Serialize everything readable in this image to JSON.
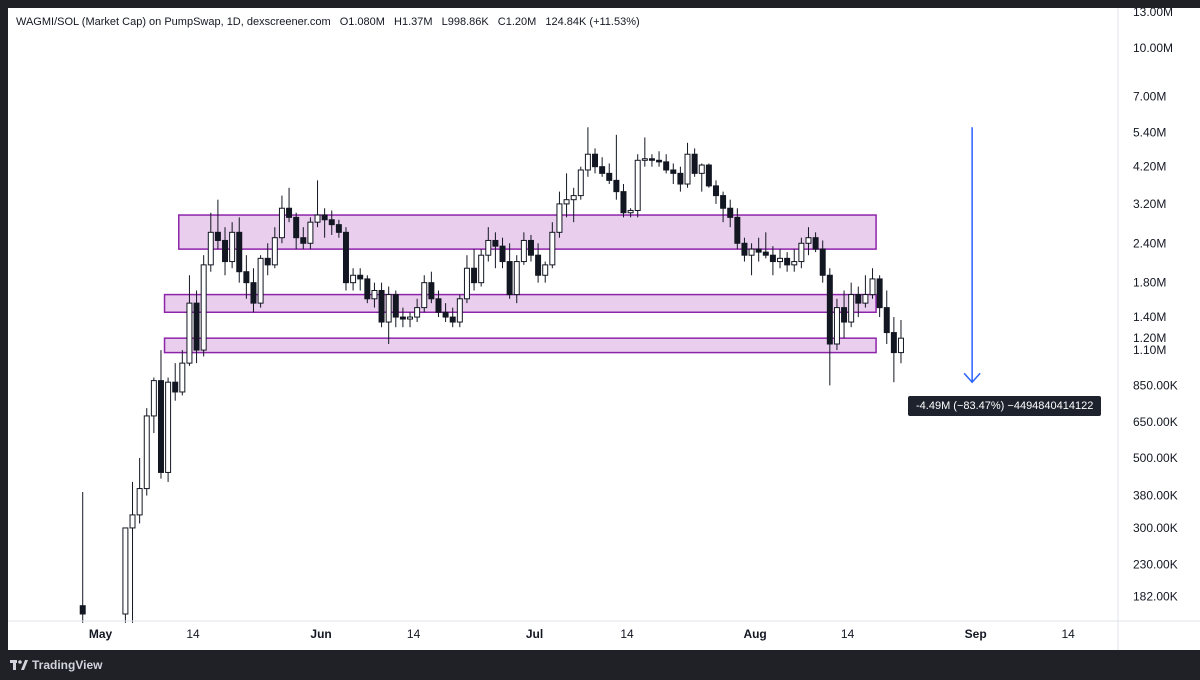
{
  "legend": {
    "symbol": "WAGMI/SOL (Market Cap) on PumpSwap, 1D, dexscreener.com",
    "open": "O1.080M",
    "high": "H1.37M",
    "low": "L998.86K",
    "close": "C1.20M",
    "change": "124.84K (+11.53%)"
  },
  "measure": {
    "label": "-4.49M (−83.47%) −4494840414122"
  },
  "footer": {
    "brand": "TradingView"
  },
  "chart_data": {
    "type": "candlestick",
    "scale": "log",
    "ylim": [
      160000,
      13000000
    ],
    "y_ticks": [
      {
        "value": 13000000,
        "label": "13.00M"
      },
      {
        "value": 10000000,
        "label": "10.00M"
      },
      {
        "value": 7000000,
        "label": "7.00M"
      },
      {
        "value": 5400000,
        "label": "5.40M"
      },
      {
        "value": 4200000,
        "label": "4.20M"
      },
      {
        "value": 3200000,
        "label": "3.20M"
      },
      {
        "value": 2400000,
        "label": "2.40M"
      },
      {
        "value": 1800000,
        "label": "1.80M"
      },
      {
        "value": 1400000,
        "label": "1.40M"
      },
      {
        "value": 1200000,
        "label": "1.20M"
      },
      {
        "value": 1100000,
        "label": "1.10M"
      },
      {
        "value": 850000,
        "label": "850.00K"
      },
      {
        "value": 650000,
        "label": "650.00K"
      },
      {
        "value": 500000,
        "label": "500.00K"
      },
      {
        "value": 380000,
        "label": "380.00K"
      },
      {
        "value": 300000,
        "label": "300.00K"
      },
      {
        "value": 230000,
        "label": "230.00K"
      },
      {
        "value": 182000,
        "label": "182.00K"
      }
    ],
    "x_ticks": [
      {
        "date": "2025-05-01",
        "label": "May",
        "bold": true
      },
      {
        "date": "2025-05-14",
        "label": "14",
        "bold": false
      },
      {
        "date": "2025-06-01",
        "label": "Jun",
        "bold": true
      },
      {
        "date": "2025-06-14",
        "label": "14",
        "bold": false
      },
      {
        "date": "2025-07-01",
        "label": "Jul",
        "bold": true
      },
      {
        "date": "2025-07-14",
        "label": "14",
        "bold": false
      },
      {
        "date": "2025-08-01",
        "label": "Aug",
        "bold": true
      },
      {
        "date": "2025-08-14",
        "label": "14",
        "bold": false
      },
      {
        "date": "2025-09-01",
        "label": "Sep",
        "bold": true
      },
      {
        "date": "2025-09-14",
        "label": "14",
        "bold": false
      }
    ],
    "xlim": [
      "2025-04-18",
      "2025-09-21"
    ],
    "zones": [
      {
        "from": "2025-05-12",
        "to": "2025-08-18",
        "low": 2300000,
        "high": 2950000,
        "color": "#e1bee7"
      },
      {
        "from": "2025-05-10",
        "to": "2025-08-18",
        "low": 1450000,
        "high": 1650000,
        "color": "#e1bee7"
      },
      {
        "from": "2025-05-10",
        "to": "2025-08-18",
        "low": 1080000,
        "high": 1200000,
        "color": "#e1bee7"
      }
    ],
    "zone_border_color": "#8e24aa",
    "arrow": {
      "date": "2025-08-31",
      "from": 5600000,
      "to": 870000,
      "color": "#2962ff"
    },
    "candles": [
      {
        "d": "2025-04-28",
        "o": 170000,
        "h": 390000,
        "l": 150000,
        "c": 160000
      },
      {
        "d": "2025-05-04",
        "o": 160000,
        "h": 300000,
        "l": 150000,
        "c": 300000
      },
      {
        "d": "2025-05-05",
        "o": 300000,
        "h": 420000,
        "l": 150000,
        "c": 330000
      },
      {
        "d": "2025-05-06",
        "o": 330000,
        "h": 500000,
        "l": 310000,
        "c": 400000
      },
      {
        "d": "2025-05-07",
        "o": 400000,
        "h": 720000,
        "l": 380000,
        "c": 680000
      },
      {
        "d": "2025-05-08",
        "o": 680000,
        "h": 900000,
        "l": 600000,
        "c": 880000
      },
      {
        "d": "2025-05-09",
        "o": 880000,
        "h": 1100000,
        "l": 430000,
        "c": 450000
      },
      {
        "d": "2025-05-10",
        "o": 450000,
        "h": 900000,
        "l": 420000,
        "c": 870000
      },
      {
        "d": "2025-05-11",
        "o": 870000,
        "h": 1000000,
        "l": 760000,
        "c": 810000
      },
      {
        "d": "2025-05-12",
        "o": 810000,
        "h": 1100000,
        "l": 790000,
        "c": 1000000
      },
      {
        "d": "2025-05-13",
        "o": 1000000,
        "h": 1900000,
        "l": 980000,
        "c": 1550000
      },
      {
        "d": "2025-05-14",
        "o": 1550000,
        "h": 1700000,
        "l": 1000000,
        "c": 1100000
      },
      {
        "d": "2025-05-15",
        "o": 1100000,
        "h": 2200000,
        "l": 1050000,
        "c": 2050000
      },
      {
        "d": "2025-05-16",
        "o": 2050000,
        "h": 3000000,
        "l": 1950000,
        "c": 2600000
      },
      {
        "d": "2025-05-17",
        "o": 2600000,
        "h": 3300000,
        "l": 2300000,
        "c": 2450000
      },
      {
        "d": "2025-05-18",
        "o": 2450000,
        "h": 2700000,
        "l": 1900000,
        "c": 2100000
      },
      {
        "d": "2025-05-19",
        "o": 2100000,
        "h": 2800000,
        "l": 2000000,
        "c": 2600000
      },
      {
        "d": "2025-05-20",
        "o": 2600000,
        "h": 2900000,
        "l": 1800000,
        "c": 1950000
      },
      {
        "d": "2025-05-21",
        "o": 1950000,
        "h": 2200000,
        "l": 1600000,
        "c": 1800000
      },
      {
        "d": "2025-05-22",
        "o": 1800000,
        "h": 2000000,
        "l": 1450000,
        "c": 1550000
      },
      {
        "d": "2025-05-23",
        "o": 1550000,
        "h": 2200000,
        "l": 1500000,
        "c": 2150000
      },
      {
        "d": "2025-05-24",
        "o": 2150000,
        "h": 2400000,
        "l": 1900000,
        "c": 2050000
      },
      {
        "d": "2025-05-25",
        "o": 2050000,
        "h": 2700000,
        "l": 2000000,
        "c": 2500000
      },
      {
        "d": "2025-05-26",
        "o": 2500000,
        "h": 3400000,
        "l": 2400000,
        "c": 3100000
      },
      {
        "d": "2025-05-27",
        "o": 3100000,
        "h": 3600000,
        "l": 2800000,
        "c": 2900000
      },
      {
        "d": "2025-05-28",
        "o": 2900000,
        "h": 3000000,
        "l": 2300000,
        "c": 2500000
      },
      {
        "d": "2025-05-29",
        "o": 2500000,
        "h": 2700000,
        "l": 2300000,
        "c": 2400000
      },
      {
        "d": "2025-05-30",
        "o": 2400000,
        "h": 2900000,
        "l": 2300000,
        "c": 2800000
      },
      {
        "d": "2025-05-31",
        "o": 2800000,
        "h": 3800000,
        "l": 2700000,
        "c": 2950000
      },
      {
        "d": "2025-06-01",
        "o": 2950000,
        "h": 3100000,
        "l": 2500000,
        "c": 2850000
      },
      {
        "d": "2025-06-02",
        "o": 2850000,
        "h": 3050000,
        "l": 2550000,
        "c": 2750000
      },
      {
        "d": "2025-06-03",
        "o": 2750000,
        "h": 2850000,
        "l": 2500000,
        "c": 2600000
      },
      {
        "d": "2025-06-04",
        "o": 2600000,
        "h": 2700000,
        "l": 1700000,
        "c": 1800000
      },
      {
        "d": "2025-06-05",
        "o": 1800000,
        "h": 2000000,
        "l": 1700000,
        "c": 1900000
      },
      {
        "d": "2025-06-06",
        "o": 1900000,
        "h": 2000000,
        "l": 1700000,
        "c": 1850000
      },
      {
        "d": "2025-06-07",
        "o": 1850000,
        "h": 1900000,
        "l": 1550000,
        "c": 1600000
      },
      {
        "d": "2025-06-08",
        "o": 1600000,
        "h": 1800000,
        "l": 1500000,
        "c": 1700000
      },
      {
        "d": "2025-06-09",
        "o": 1700000,
        "h": 1800000,
        "l": 1300000,
        "c": 1350000
      },
      {
        "d": "2025-06-10",
        "o": 1350000,
        "h": 1750000,
        "l": 1150000,
        "c": 1650000
      },
      {
        "d": "2025-06-11",
        "o": 1650000,
        "h": 1700000,
        "l": 1300000,
        "c": 1400000
      },
      {
        "d": "2025-06-12",
        "o": 1400000,
        "h": 1500000,
        "l": 1300000,
        "c": 1380000
      },
      {
        "d": "2025-06-13",
        "o": 1380000,
        "h": 1450000,
        "l": 1300000,
        "c": 1400000
      },
      {
        "d": "2025-06-14",
        "o": 1400000,
        "h": 1600000,
        "l": 1350000,
        "c": 1500000
      },
      {
        "d": "2025-06-15",
        "o": 1500000,
        "h": 1900000,
        "l": 1450000,
        "c": 1800000
      },
      {
        "d": "2025-06-16",
        "o": 1800000,
        "h": 1950000,
        "l": 1550000,
        "c": 1600000
      },
      {
        "d": "2025-06-17",
        "o": 1600000,
        "h": 1700000,
        "l": 1400000,
        "c": 1450000
      },
      {
        "d": "2025-06-18",
        "o": 1450000,
        "h": 1550000,
        "l": 1350000,
        "c": 1400000
      },
      {
        "d": "2025-06-19",
        "o": 1400000,
        "h": 1500000,
        "l": 1300000,
        "c": 1350000
      },
      {
        "d": "2025-06-20",
        "o": 1350000,
        "h": 1650000,
        "l": 1300000,
        "c": 1600000
      },
      {
        "d": "2025-06-21",
        "o": 1600000,
        "h": 2200000,
        "l": 1550000,
        "c": 2000000
      },
      {
        "d": "2025-06-22",
        "o": 2000000,
        "h": 2300000,
        "l": 1700000,
        "c": 1800000
      },
      {
        "d": "2025-06-23",
        "o": 1800000,
        "h": 2300000,
        "l": 1750000,
        "c": 2200000
      },
      {
        "d": "2025-06-24",
        "o": 2200000,
        "h": 2700000,
        "l": 2100000,
        "c": 2450000
      },
      {
        "d": "2025-06-25",
        "o": 2450000,
        "h": 2600000,
        "l": 2000000,
        "c": 2350000
      },
      {
        "d": "2025-06-26",
        "o": 2350000,
        "h": 2500000,
        "l": 2000000,
        "c": 2100000
      },
      {
        "d": "2025-06-27",
        "o": 2100000,
        "h": 2400000,
        "l": 1600000,
        "c": 1650000
      },
      {
        "d": "2025-06-28",
        "o": 1650000,
        "h": 2200000,
        "l": 1550000,
        "c": 2100000
      },
      {
        "d": "2025-06-29",
        "o": 2100000,
        "h": 2600000,
        "l": 2050000,
        "c": 2450000
      },
      {
        "d": "2025-06-30",
        "o": 2450000,
        "h": 2550000,
        "l": 2100000,
        "c": 2200000
      },
      {
        "d": "2025-07-01",
        "o": 2200000,
        "h": 2400000,
        "l": 1800000,
        "c": 1900000
      },
      {
        "d": "2025-07-02",
        "o": 1900000,
        "h": 2100000,
        "l": 1800000,
        "c": 2050000
      },
      {
        "d": "2025-07-03",
        "o": 2050000,
        "h": 2800000,
        "l": 2000000,
        "c": 2600000
      },
      {
        "d": "2025-07-04",
        "o": 2600000,
        "h": 3500000,
        "l": 2500000,
        "c": 3200000
      },
      {
        "d": "2025-07-05",
        "o": 3200000,
        "h": 4000000,
        "l": 2900000,
        "c": 3300000
      },
      {
        "d": "2025-07-06",
        "o": 3300000,
        "h": 3600000,
        "l": 2800000,
        "c": 3400000
      },
      {
        "d": "2025-07-07",
        "o": 3400000,
        "h": 4200000,
        "l": 3300000,
        "c": 4100000
      },
      {
        "d": "2025-07-08",
        "o": 4100000,
        "h": 5600000,
        "l": 3900000,
        "c": 4600000
      },
      {
        "d": "2025-07-09",
        "o": 4600000,
        "h": 4800000,
        "l": 4000000,
        "c": 4200000
      },
      {
        "d": "2025-07-10",
        "o": 4200000,
        "h": 4500000,
        "l": 3900000,
        "c": 4000000
      },
      {
        "d": "2025-07-11",
        "o": 4000000,
        "h": 4300000,
        "l": 3700000,
        "c": 3800000
      },
      {
        "d": "2025-07-12",
        "o": 3800000,
        "h": 5300000,
        "l": 3300000,
        "c": 3500000
      },
      {
        "d": "2025-07-13",
        "o": 3500000,
        "h": 3700000,
        "l": 2900000,
        "c": 3000000
      },
      {
        "d": "2025-07-14",
        "o": 3000000,
        "h": 3100000,
        "l": 2900000,
        "c": 3050000
      },
      {
        "d": "2025-07-15",
        "o": 3050000,
        "h": 4600000,
        "l": 2900000,
        "c": 4400000
      },
      {
        "d": "2025-07-16",
        "o": 4400000,
        "h": 5200000,
        "l": 4200000,
        "c": 4450000
      },
      {
        "d": "2025-07-17",
        "o": 4450000,
        "h": 4600000,
        "l": 4200000,
        "c": 4400000
      },
      {
        "d": "2025-07-18",
        "o": 4400000,
        "h": 4700000,
        "l": 4200000,
        "c": 4350000
      },
      {
        "d": "2025-07-19",
        "o": 4350000,
        "h": 4600000,
        "l": 4000000,
        "c": 4100000
      },
      {
        "d": "2025-07-20",
        "o": 4100000,
        "h": 4300000,
        "l": 3700000,
        "c": 4000000
      },
      {
        "d": "2025-07-21",
        "o": 4000000,
        "h": 4200000,
        "l": 3500000,
        "c": 3700000
      },
      {
        "d": "2025-07-22",
        "o": 3700000,
        "h": 5000000,
        "l": 3600000,
        "c": 4600000
      },
      {
        "d": "2025-07-23",
        "o": 4600000,
        "h": 4800000,
        "l": 3900000,
        "c": 4000000
      },
      {
        "d": "2025-07-24",
        "o": 4000000,
        "h": 4300000,
        "l": 3500000,
        "c": 4250000
      },
      {
        "d": "2025-07-25",
        "o": 4250000,
        "h": 4300000,
        "l": 3600000,
        "c": 3650000
      },
      {
        "d": "2025-07-26",
        "o": 3650000,
        "h": 3800000,
        "l": 3200000,
        "c": 3400000
      },
      {
        "d": "2025-07-27",
        "o": 3400000,
        "h": 3500000,
        "l": 2800000,
        "c": 3100000
      },
      {
        "d": "2025-07-28",
        "o": 3100000,
        "h": 3300000,
        "l": 2700000,
        "c": 2900000
      },
      {
        "d": "2025-07-29",
        "o": 2900000,
        "h": 3100000,
        "l": 2300000,
        "c": 2400000
      },
      {
        "d": "2025-07-30",
        "o": 2400000,
        "h": 2500000,
        "l": 2100000,
        "c": 2200000
      },
      {
        "d": "2025-07-31",
        "o": 2200000,
        "h": 2400000,
        "l": 1900000,
        "c": 2300000
      },
      {
        "d": "2025-08-01",
        "o": 2300000,
        "h": 2500000,
        "l": 2100000,
        "c": 2250000
      },
      {
        "d": "2025-08-02",
        "o": 2250000,
        "h": 2600000,
        "l": 2150000,
        "c": 2200000
      },
      {
        "d": "2025-08-03",
        "o": 2200000,
        "h": 2350000,
        "l": 1900000,
        "c": 2100000
      },
      {
        "d": "2025-08-04",
        "o": 2100000,
        "h": 2300000,
        "l": 2000000,
        "c": 2150000
      },
      {
        "d": "2025-08-05",
        "o": 2150000,
        "h": 2250000,
        "l": 1950000,
        "c": 2050000
      },
      {
        "d": "2025-08-06",
        "o": 2050000,
        "h": 2300000,
        "l": 1950000,
        "c": 2100000
      },
      {
        "d": "2025-08-07",
        "o": 2100000,
        "h": 2500000,
        "l": 2000000,
        "c": 2400000
      },
      {
        "d": "2025-08-08",
        "o": 2400000,
        "h": 2700000,
        "l": 2200000,
        "c": 2500000
      },
      {
        "d": "2025-08-09",
        "o": 2500000,
        "h": 2600000,
        "l": 2250000,
        "c": 2300000
      },
      {
        "d": "2025-08-10",
        "o": 2300000,
        "h": 2450000,
        "l": 1800000,
        "c": 1900000
      },
      {
        "d": "2025-08-11",
        "o": 1900000,
        "h": 2000000,
        "l": 850000,
        "c": 1150000
      },
      {
        "d": "2025-08-12",
        "o": 1150000,
        "h": 1600000,
        "l": 1100000,
        "c": 1500000
      },
      {
        "d": "2025-08-13",
        "o": 1500000,
        "h": 1700000,
        "l": 1200000,
        "c": 1350000
      },
      {
        "d": "2025-08-14",
        "o": 1350000,
        "h": 1800000,
        "l": 1300000,
        "c": 1650000
      },
      {
        "d": "2025-08-15",
        "o": 1650000,
        "h": 1750000,
        "l": 1400000,
        "c": 1550000
      },
      {
        "d": "2025-08-16",
        "o": 1550000,
        "h": 1900000,
        "l": 1500000,
        "c": 1650000
      },
      {
        "d": "2025-08-17",
        "o": 1650000,
        "h": 2000000,
        "l": 1600000,
        "c": 1850000
      },
      {
        "d": "2025-08-18",
        "o": 1850000,
        "h": 1900000,
        "l": 1400000,
        "c": 1500000
      },
      {
        "d": "2025-08-19",
        "o": 1500000,
        "h": 1700000,
        "l": 1150000,
        "c": 1250000
      },
      {
        "d": "2025-08-20",
        "o": 1250000,
        "h": 1400000,
        "l": 870000,
        "c": 1080000
      },
      {
        "d": "2025-08-21",
        "o": 1080000,
        "h": 1370000,
        "l": 998860,
        "c": 1200000
      }
    ]
  }
}
